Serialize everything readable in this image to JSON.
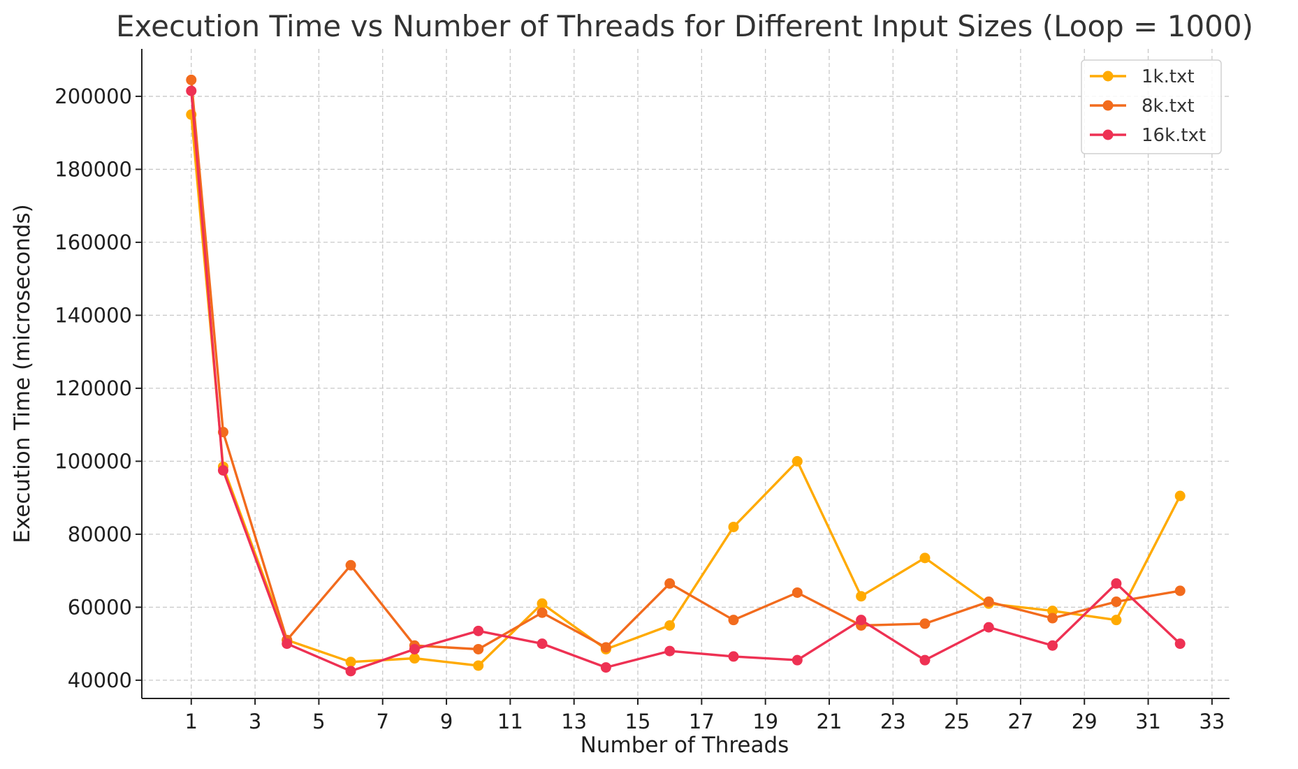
{
  "chart_data": {
    "type": "line",
    "title": "Execution Time vs Number of Threads for Different Input Sizes (Loop = 1000)",
    "xlabel": "Number of Threads",
    "ylabel": "Execution Time (microseconds)",
    "xlim": [
      -0.55,
      33.55
    ],
    "ylim": [
      35000,
      213000
    ],
    "xticks": [
      1,
      3,
      5,
      7,
      9,
      11,
      13,
      15,
      17,
      19,
      21,
      23,
      25,
      27,
      29,
      31,
      33
    ],
    "yticks": [
      40000,
      60000,
      80000,
      100000,
      120000,
      140000,
      160000,
      180000,
      200000
    ],
    "grid": true,
    "legend_position": "top-right",
    "x": [
      1,
      2,
      4,
      6,
      8,
      10,
      12,
      14,
      16,
      18,
      20,
      22,
      24,
      26,
      28,
      30,
      32
    ],
    "series": [
      {
        "name": "1k.txt",
        "color": "#FFAA00",
        "values": [
          195000,
          98500,
          51000,
          45000,
          46000,
          44000,
          61000,
          48500,
          55000,
          82000,
          100000,
          63000,
          73500,
          61000,
          59000,
          56500,
          90500
        ]
      },
      {
        "name": "8k.txt",
        "color": "#F26B1D",
        "values": [
          204500,
          108000,
          51000,
          71500,
          49500,
          48500,
          58500,
          49000,
          66500,
          56500,
          64000,
          55000,
          55500,
          61500,
          57000,
          61500,
          64500
        ]
      },
      {
        "name": "16k.txt",
        "color": "#EE3153",
        "values": [
          201500,
          97500,
          50000,
          42500,
          48500,
          53500,
          50000,
          43500,
          48000,
          46500,
          45500,
          56500,
          45500,
          54500,
          49500,
          66500,
          50000
        ]
      }
    ]
  }
}
